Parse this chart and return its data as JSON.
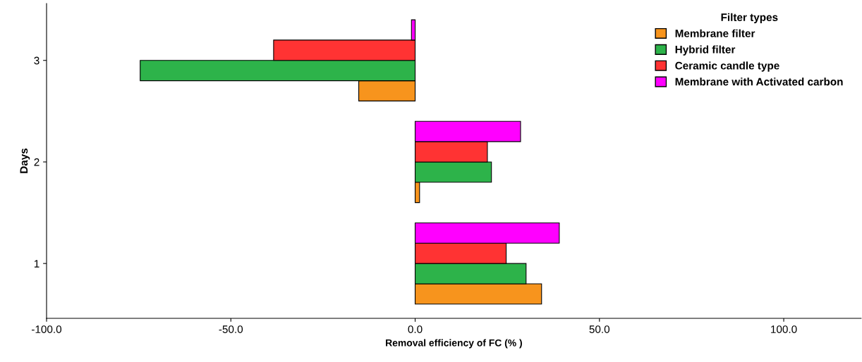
{
  "chart_data": {
    "type": "bar",
    "orientation": "horizontal",
    "xlabel": "Removal efficiency of FC (% )",
    "ylabel": "Days",
    "legend_title": "Filter types",
    "legend": "top right",
    "grid": false,
    "categories": [
      "3",
      "2",
      "1"
    ],
    "series": [
      {
        "name": "Membrane filter",
        "color": "#f7941d",
        "values": [
          -15.3,
          1.2,
          34.3
        ]
      },
      {
        "name": "Hybrid filter",
        "color": "#2db34a",
        "values": [
          -74.6,
          20.7,
          30.1
        ]
      },
      {
        "name": "Ceramic candle type",
        "color": "#ff3333",
        "values": [
          -38.4,
          19.6,
          24.7
        ]
      },
      {
        "name": "Membrane with Activated carbon",
        "color": "#ff00ff",
        "values": [
          -1.0,
          28.6,
          39.1
        ]
      }
    ],
    "xlim": [
      -100,
      121
    ],
    "xticks": [
      {
        "value": -100,
        "label": "-100.0"
      },
      {
        "value": -50,
        "label": "-50.0"
      },
      {
        "value": 0,
        "label": "0.0"
      },
      {
        "value": 50,
        "label": "50.0"
      },
      {
        "value": 100,
        "label": "100.0"
      }
    ]
  }
}
